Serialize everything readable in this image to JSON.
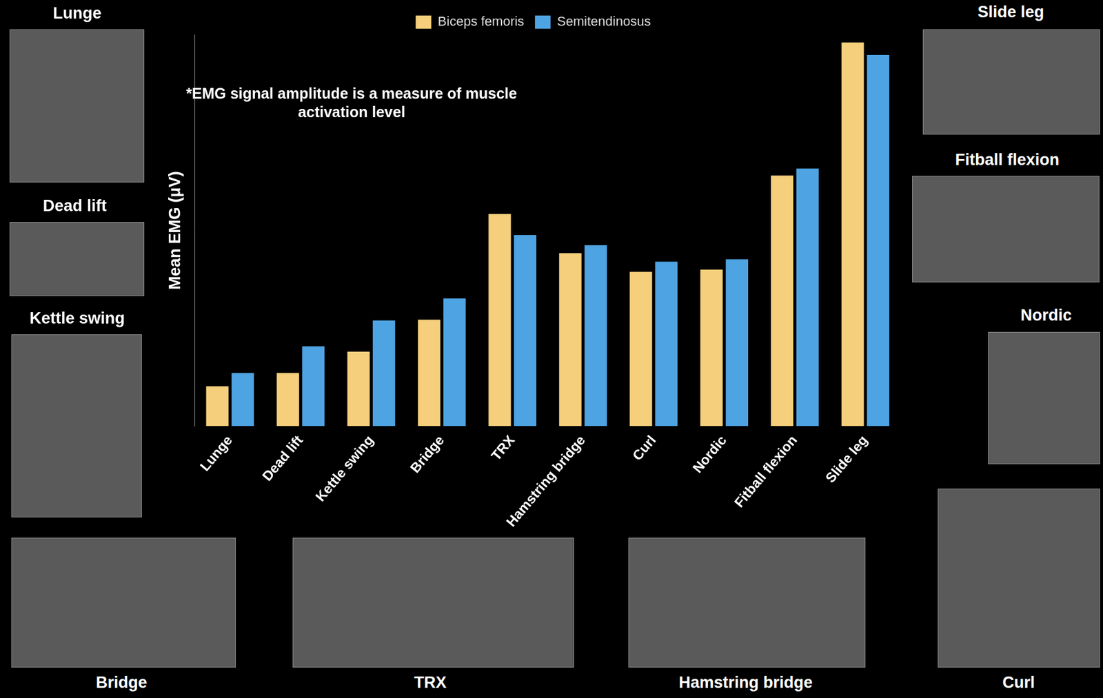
{
  "chart_data": {
    "type": "bar",
    "annotation": "*EMG signal amplitude is a measure of muscle activation level",
    "y_label": "Mean EMG (μV)",
    "categories": [
      "Lunge",
      "Dead lift",
      "Kettle swing",
      "Bridge",
      "TRX",
      "Hamstring bridge",
      "Curl",
      "Nordic",
      "Fitball flexion",
      "Slide leg"
    ],
    "series": [
      {
        "name": "Biceps femoris",
        "color": "#f5cf7b",
        "values": [
          51,
          68,
          95,
          136,
          271,
          221,
          197,
          200,
          320,
          490
        ]
      },
      {
        "name": "Semitendinosus",
        "color": "#4ea3e2",
        "values": [
          68,
          102,
          135,
          163,
          244,
          231,
          210,
          213,
          329,
          474
        ]
      }
    ],
    "ylim": [
      0,
      500
    ],
    "grid": false,
    "legend": "top",
    "tick_labels": "x"
  },
  "photos": [
    {
      "caption": "Lunge"
    },
    {
      "caption": "Dead lift"
    },
    {
      "caption": "Kettle swing"
    },
    {
      "caption": "Bridge"
    },
    {
      "caption": "TRX"
    },
    {
      "caption": "Hamstring bridge"
    },
    {
      "caption": "Curl"
    },
    {
      "caption": "Nordic"
    },
    {
      "caption": "Fitball flexion"
    },
    {
      "caption": "Slide leg"
    }
  ]
}
